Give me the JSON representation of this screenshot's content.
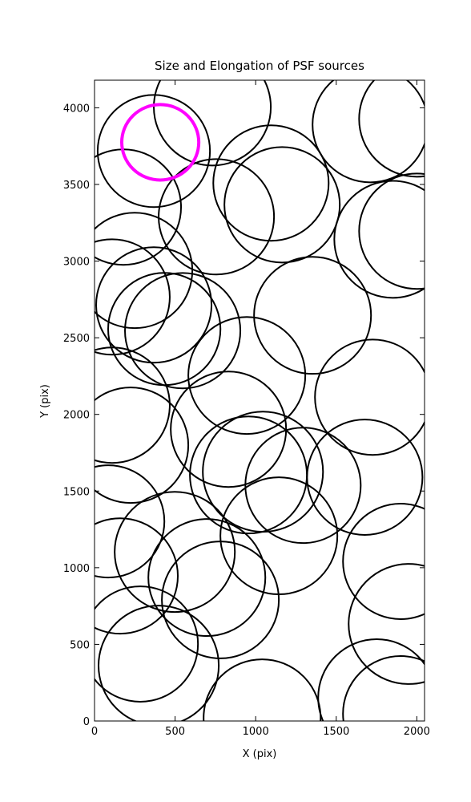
{
  "chart_data": {
    "type": "ellipse",
    "title": "Size and Elongation of PSF sources",
    "xlabel": "X (pix)",
    "ylabel": "Y (pix)",
    "xlim": [
      0,
      2048
    ],
    "ylim": [
      0,
      4180
    ],
    "xticks": [
      0,
      500,
      1000,
      1500,
      2000
    ],
    "yticks": [
      0,
      500,
      1000,
      1500,
      2000,
      2500,
      3000,
      3500,
      4000
    ],
    "series": [
      {
        "color": "#000000",
        "x": [
          731,
          368,
          179,
          756,
          1095,
          1164,
          1711,
          2000,
          1851,
          2000,
          249,
          109,
          368,
          433,
          547,
          1353,
          945,
          109,
          224,
          831,
          1726,
          955,
          1045,
          1294,
          1677,
          1144,
          498,
          697,
          781,
          1900,
          159,
          284,
          398,
          1950,
          1040,
          1751,
          1900,
          85
        ],
        "y": [
          4005,
          3718,
          3352,
          3289,
          3509,
          3367,
          3890,
          3927,
          3142,
          3195,
          2939,
          2766,
          2714,
          2557,
          2546,
          2646,
          2254,
          2060,
          1799,
          1903,
          2112,
          1605,
          1626,
          1537,
          1590,
          1208,
          1103,
          936,
          790,
          1041,
          946,
          502,
          361,
          633,
          21,
          152,
          47,
          1302
        ],
        "width": [
          726,
          697,
          716,
          716,
          716,
          716,
          716,
          716,
          726,
          716,
          716,
          716,
          716,
          697,
          716,
          726,
          726,
          716,
          716,
          716,
          716,
          726,
          746,
          716,
          716,
          726,
          746,
          726,
          726,
          716,
          716,
          716,
          746,
          746,
          726,
          726,
          716,
          697
        ],
        "height": [
          763,
          732,
          753,
          753,
          753,
          753,
          753,
          753,
          763,
          753,
          753,
          753,
          753,
          732,
          753,
          763,
          763,
          753,
          753,
          753,
          753,
          763,
          784,
          753,
          753,
          763,
          784,
          763,
          763,
          753,
          753,
          753,
          784,
          784,
          763,
          763,
          753,
          732
        ]
      },
      {
        "color": "#ff00ff",
        "x": [
          408
        ],
        "y": [
          3775
        ],
        "width": [
          478
        ],
        "height": [
          492
        ]
      }
    ]
  }
}
